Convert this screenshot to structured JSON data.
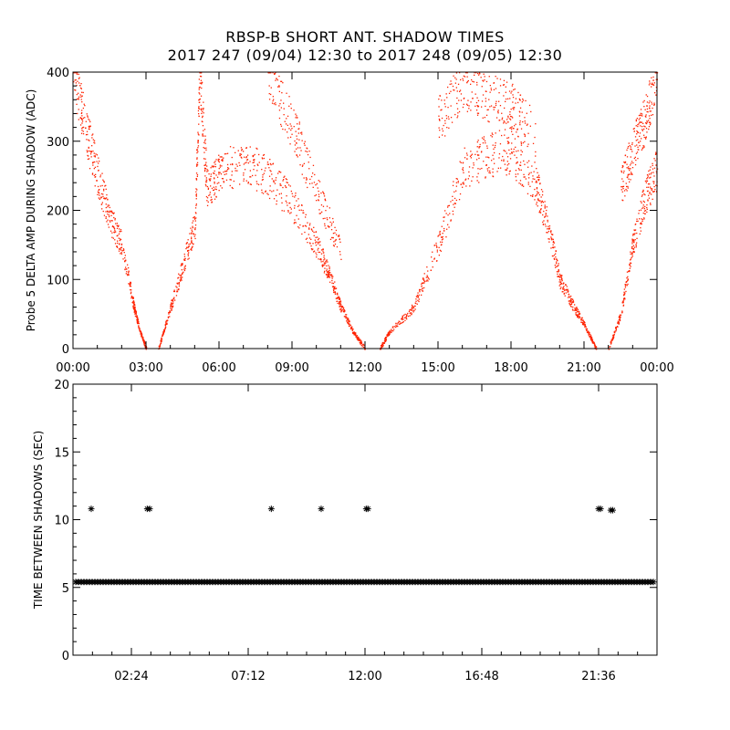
{
  "title": "RBSP-B SHORT ANT. SHADOW TIMES",
  "subtitle": "2017 247 (09/04) 12:30 to 2017 248 (09/05) 12:30",
  "chart_data": [
    {
      "type": "scatter",
      "ylabel": "Probe 5 DELTA AMP DURING SHADOW (ADC)",
      "xlabel": "",
      "x_unit": "hours",
      "xlim": [
        0,
        24
      ],
      "ylim": [
        0,
        400
      ],
      "x_ticks": [
        0,
        3,
        6,
        9,
        12,
        15,
        18,
        21,
        24
      ],
      "x_tick_labels": [
        "00:00",
        "03:00",
        "06:00",
        "09:00",
        "12:00",
        "15:00",
        "18:00",
        "21:00",
        "00:00"
      ],
      "y_ticks": [
        0,
        100,
        200,
        300,
        400
      ],
      "y_tick_labels": [
        "0",
        "100",
        "200",
        "300",
        "400"
      ],
      "marker_color": "#ff2200",
      "series": [
        {
          "name": "",
          "x": [
            0.0,
            0.5,
            1.0,
            1.5,
            2.0,
            2.5,
            2.75,
            3.0
          ],
          "y": [
            400,
            320,
            250,
            190,
            150,
            60,
            25,
            0
          ]
        },
        {
          "name": "",
          "x": [
            3.5,
            4.0,
            4.5,
            5.0,
            5.2,
            5.5,
            6.0,
            7.0,
            8.0,
            9.0,
            10.0,
            10.5,
            11.0,
            11.5,
            12.0
          ],
          "y": [
            0,
            60,
            120,
            180,
            400,
            230,
            255,
            270,
            250,
            210,
            150,
            110,
            60,
            25,
            0
          ]
        },
        {
          "name": "",
          "x": [
            8.0,
            9.0,
            10.0,
            11.0
          ],
          "y": [
            400,
            320,
            230,
            140
          ]
        },
        {
          "name": "",
          "x": [
            12.6,
            13.0,
            14.0,
            15.0,
            16.0,
            17.0,
            18.0,
            19.0,
            19.5,
            20.0,
            20.5,
            21.0,
            21.5
          ],
          "y": [
            0,
            25,
            60,
            150,
            260,
            280,
            285,
            240,
            180,
            100,
            65,
            35,
            0
          ]
        },
        {
          "name": "",
          "x": [
            15.0,
            16.0,
            17.0,
            18.0,
            19.0
          ],
          "y": [
            330,
            380,
            365,
            350,
            310
          ]
        },
        {
          "name": "",
          "x": [
            22.0,
            22.5,
            23.0,
            23.5,
            24.0
          ],
          "y": [
            0,
            50,
            150,
            220,
            260
          ]
        },
        {
          "name": "",
          "x": [
            22.5,
            23.0,
            23.5,
            24.0
          ],
          "y": [
            230,
            290,
            330,
            400
          ]
        }
      ]
    },
    {
      "type": "scatter",
      "ylabel": "TIME BETWEEN SHADOWS (SEC)",
      "xlabel": "",
      "x_unit": "hours",
      "xlim": [
        0,
        24
      ],
      "ylim": [
        0,
        20
      ],
      "x_ticks": [
        2.4,
        7.2,
        12.0,
        16.8,
        21.6
      ],
      "x_tick_labels": [
        "02:24",
        "07:12",
        "12:00",
        "16:48",
        "21:36"
      ],
      "y_ticks": [
        0,
        5,
        10,
        15,
        20
      ],
      "y_tick_labels": [
        "0",
        "5",
        "10",
        "15",
        "20"
      ],
      "marker": "asterisk",
      "marker_color": "#000000",
      "baseline": {
        "value": 5.4,
        "x_range": [
          0,
          24
        ]
      },
      "points": [
        {
          "x": 0.75,
          "y": 10.8
        },
        {
          "x": 3.05,
          "y": 10.8
        },
        {
          "x": 3.15,
          "y": 10.8
        },
        {
          "x": 8.15,
          "y": 10.8
        },
        {
          "x": 10.2,
          "y": 10.8
        },
        {
          "x": 12.05,
          "y": 10.8
        },
        {
          "x": 12.12,
          "y": 10.8
        },
        {
          "x": 21.6,
          "y": 10.8
        },
        {
          "x": 21.68,
          "y": 10.8
        },
        {
          "x": 22.1,
          "y": 10.7
        },
        {
          "x": 22.18,
          "y": 10.7
        }
      ]
    }
  ]
}
